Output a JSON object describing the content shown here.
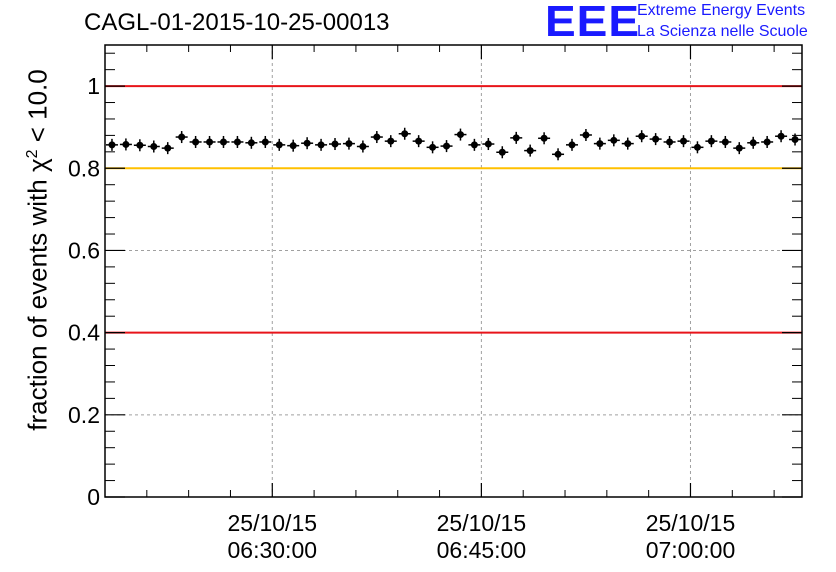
{
  "title": "CAGL-01-2015-10-25-00013",
  "logo": {
    "mark": "EEE",
    "line1": "Extreme Energy Events",
    "line2": "La Scienza nelle Scuole"
  },
  "colors": {
    "reference_high": "#e8141a",
    "reference_low": "#e8141a",
    "threshold": "#ffc000",
    "markers": "#000000",
    "logo": "#1a1aff"
  },
  "chart_data": {
    "type": "scatter",
    "title": "CAGL-01-2015-10-25-00013",
    "ylabel_prefix": "fraction of events with χ",
    "ylabel_sup": "2",
    "ylabel_suffix": " < 10.0",
    "xlabel": "",
    "ylim": [
      0,
      1.1
    ],
    "yticks": [
      0,
      0.2,
      0.4,
      0.6,
      0.8,
      1
    ],
    "ytick_labels": [
      "0",
      "0.2",
      "0.4",
      "0.6",
      "0.8",
      "1"
    ],
    "x_unit": "minutes after 06:18:00 on 25/10/15",
    "xlim": [
      0,
      50
    ],
    "xticks": [
      {
        "x": 12,
        "date": "25/10/15",
        "time": "06:30:00"
      },
      {
        "x": 27,
        "date": "25/10/15",
        "time": "06:45:00"
      },
      {
        "x": 42,
        "date": "25/10/15",
        "time": "07:00:00"
      }
    ],
    "grid": true,
    "reference_lines": [
      {
        "y": 1.0,
        "color": "red"
      },
      {
        "y": 0.8,
        "color": "yellow"
      },
      {
        "y": 0.4,
        "color": "red"
      }
    ],
    "series": [
      {
        "values": [
          0.857,
          0.858,
          0.856,
          0.853,
          0.849,
          0.876,
          0.864,
          0.864,
          0.864,
          0.864,
          0.862,
          0.864,
          0.857,
          0.855,
          0.861,
          0.857,
          0.859,
          0.86,
          0.853,
          0.876,
          0.866,
          0.884,
          0.866,
          0.851,
          0.854,
          0.882,
          0.857,
          0.859,
          0.839,
          0.874,
          0.843,
          0.873,
          0.834,
          0.857,
          0.881,
          0.86,
          0.868,
          0.86,
          0.878,
          0.871,
          0.864,
          0.866,
          0.851,
          0.866,
          0.864,
          0.849,
          0.862,
          0.864,
          0.878,
          0.87
        ]
      }
    ]
  }
}
